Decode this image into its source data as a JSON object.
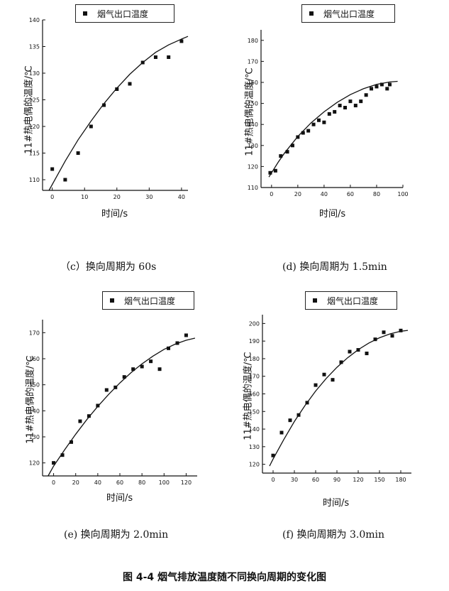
{
  "figure_title": "图 4-4 烟气排放温度随不同换向周期的变化图",
  "chart_data": [
    {
      "type": "scatter",
      "caption": "（c）换向周期为 60s",
      "legend": "烟气出口温度",
      "xlabel": "时间/s",
      "ylabel": "11#热电偶的温度/℃",
      "xlim": [
        -3,
        42
      ],
      "ylim": [
        108,
        140
      ],
      "xticks": [
        0,
        10,
        20,
        30,
        40
      ],
      "yticks": [
        110,
        115,
        120,
        125,
        130,
        135,
        140
      ],
      "points": [
        [
          0,
          112
        ],
        [
          4,
          110
        ],
        [
          8,
          115
        ],
        [
          12,
          120
        ],
        [
          16,
          124
        ],
        [
          20,
          127
        ],
        [
          24,
          128
        ],
        [
          28,
          132
        ],
        [
          32,
          133
        ],
        [
          36,
          133
        ],
        [
          40,
          136
        ]
      ],
      "fit": [
        [
          -1,
          108
        ],
        [
          4,
          113.5
        ],
        [
          8,
          117.5
        ],
        [
          12,
          121
        ],
        [
          16,
          124.3
        ],
        [
          20,
          127.2
        ],
        [
          24,
          129.8
        ],
        [
          28,
          132
        ],
        [
          32,
          133.9
        ],
        [
          36,
          135.3
        ],
        [
          40,
          136.4
        ],
        [
          42,
          136.9
        ]
      ]
    },
    {
      "type": "scatter",
      "caption": "(d) 换向周期为 1.5min",
      "legend": "烟气出口温度",
      "xlabel": "时间/s",
      "ylabel": "11#热电偶的温度/℃",
      "xlim": [
        -8,
        100
      ],
      "ylim": [
        110,
        185
      ],
      "xticks": [
        0,
        20,
        40,
        60,
        80,
        100
      ],
      "yticks": [
        110,
        120,
        130,
        140,
        150,
        160,
        170,
        180
      ],
      "points": [
        [
          -1,
          117
        ],
        [
          3,
          118
        ],
        [
          7,
          125
        ],
        [
          12,
          127
        ],
        [
          16,
          130
        ],
        [
          20,
          134
        ],
        [
          24,
          136
        ],
        [
          28,
          137
        ],
        [
          32,
          140
        ],
        [
          36,
          142
        ],
        [
          40,
          141
        ],
        [
          44,
          145
        ],
        [
          48,
          146
        ],
        [
          52,
          149
        ],
        [
          56,
          148
        ],
        [
          60,
          151
        ],
        [
          64,
          149
        ],
        [
          68,
          151
        ],
        [
          72,
          154
        ],
        [
          76,
          157
        ],
        [
          80,
          158
        ],
        [
          84,
          159
        ],
        [
          88,
          157
        ],
        [
          90,
          159
        ]
      ],
      "fit": [
        [
          -2,
          115
        ],
        [
          5,
          122
        ],
        [
          10,
          126.5
        ],
        [
          20,
          134.3
        ],
        [
          30,
          140.7
        ],
        [
          40,
          146
        ],
        [
          50,
          150.5
        ],
        [
          60,
          154.2
        ],
        [
          70,
          157
        ],
        [
          80,
          159.1
        ],
        [
          90,
          160.2
        ],
        [
          96,
          160.5
        ]
      ]
    },
    {
      "type": "scatter",
      "caption": "(e)  换向周期为 2.0min",
      "legend": "烟气出口温度",
      "xlabel": "时间/s",
      "ylabel": "11#热电偶的温度/℃",
      "xlim": [
        -10,
        130
      ],
      "ylim": [
        115,
        175
      ],
      "xticks": [
        0,
        20,
        40,
        60,
        80,
        100,
        120
      ],
      "yticks": [
        120,
        130,
        140,
        150,
        160,
        170
      ],
      "points": [
        [
          0,
          120
        ],
        [
          8,
          123
        ],
        [
          16,
          128
        ],
        [
          24,
          136
        ],
        [
          32,
          138
        ],
        [
          40,
          142
        ],
        [
          48,
          148
        ],
        [
          56,
          149
        ],
        [
          64,
          153
        ],
        [
          72,
          156
        ],
        [
          80,
          157
        ],
        [
          88,
          159
        ],
        [
          96,
          156
        ],
        [
          104,
          164
        ],
        [
          112,
          166
        ],
        [
          120,
          169
        ]
      ],
      "fit": [
        [
          -5,
          115
        ],
        [
          0,
          118.8
        ],
        [
          10,
          125
        ],
        [
          20,
          131
        ],
        [
          30,
          136.6
        ],
        [
          40,
          141.7
        ],
        [
          50,
          146.4
        ],
        [
          60,
          150.7
        ],
        [
          70,
          154.6
        ],
        [
          80,
          158
        ],
        [
          90,
          161
        ],
        [
          100,
          163.6
        ],
        [
          110,
          165.6
        ],
        [
          120,
          167.1
        ],
        [
          128,
          167.9
        ]
      ]
    },
    {
      "type": "scatter",
      "caption": "(f)   换向周期为 3.0min",
      "legend": "烟气出口温度",
      "xlabel": "时间/s",
      "ylabel": "11#热电偶的温度/℃",
      "xlim": [
        -15,
        195
      ],
      "ylim": [
        115,
        205
      ],
      "xticks": [
        0,
        30,
        60,
        90,
        120,
        150,
        180
      ],
      "yticks": [
        120,
        130,
        140,
        150,
        160,
        170,
        180,
        190,
        200
      ],
      "points": [
        [
          0,
          125
        ],
        [
          12,
          138
        ],
        [
          24,
          145
        ],
        [
          36,
          148
        ],
        [
          48,
          155
        ],
        [
          60,
          165
        ],
        [
          72,
          171
        ],
        [
          84,
          168
        ],
        [
          96,
          178
        ],
        [
          108,
          184
        ],
        [
          120,
          185
        ],
        [
          132,
          183
        ],
        [
          144,
          191
        ],
        [
          156,
          195
        ],
        [
          168,
          193
        ],
        [
          180,
          196
        ]
      ],
      "fit": [
        [
          -5,
          119
        ],
        [
          0,
          123
        ],
        [
          15,
          134
        ],
        [
          30,
          144.3
        ],
        [
          45,
          153.4
        ],
        [
          60,
          161.6
        ],
        [
          75,
          168.8
        ],
        [
          90,
          175.1
        ],
        [
          105,
          180.5
        ],
        [
          120,
          185.1
        ],
        [
          135,
          188.9
        ],
        [
          150,
          191.9
        ],
        [
          165,
          194.1
        ],
        [
          180,
          195.6
        ],
        [
          190,
          196.1
        ]
      ]
    }
  ]
}
